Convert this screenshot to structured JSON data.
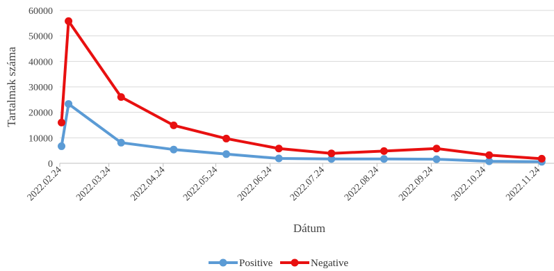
{
  "chart_data": {
    "type": "line",
    "title": "",
    "xlabel": "Dátum",
    "ylabel": "Tartalmak száma",
    "ylim": [
      0,
      60000
    ],
    "y_ticks": [
      "0",
      "10000",
      "20000",
      "30000",
      "40000",
      "50000",
      "60000"
    ],
    "x_ticks": [
      "2022.02.24",
      "2022.03.24",
      "2022.04.24",
      "2022.05.24",
      "2022.06.24",
      "2022.07.24",
      "2022.08.24",
      "2022.09.24",
      "2022.10.24",
      "2022.11.24"
    ],
    "grid": true,
    "legend_position": "bottom",
    "series": [
      {
        "name": "Positive",
        "color": "#5B9BD5",
        "points": [
          [
            "2022.02.25",
            6700
          ],
          [
            "2022.03.01",
            23300
          ],
          [
            "2022.03.31",
            8100
          ],
          [
            "2022.04.30",
            5400
          ],
          [
            "2022.05.30",
            3600
          ],
          [
            "2022.06.29",
            1900
          ],
          [
            "2022.07.29",
            1700
          ],
          [
            "2022.08.28",
            1700
          ],
          [
            "2022.09.27",
            1600
          ],
          [
            "2022.10.27",
            800
          ],
          [
            "2022.11.26",
            600
          ]
        ]
      },
      {
        "name": "Negative",
        "color": "#E81010",
        "points": [
          [
            "2022.02.25",
            16000
          ],
          [
            "2022.03.01",
            55800
          ],
          [
            "2022.03.31",
            26000
          ],
          [
            "2022.04.30",
            14900
          ],
          [
            "2022.05.30",
            9700
          ],
          [
            "2022.06.29",
            5800
          ],
          [
            "2022.07.29",
            3900
          ],
          [
            "2022.08.28",
            4800
          ],
          [
            "2022.09.27",
            5800
          ],
          [
            "2022.10.27",
            3200
          ],
          [
            "2022.11.26",
            1800
          ]
        ]
      }
    ]
  }
}
